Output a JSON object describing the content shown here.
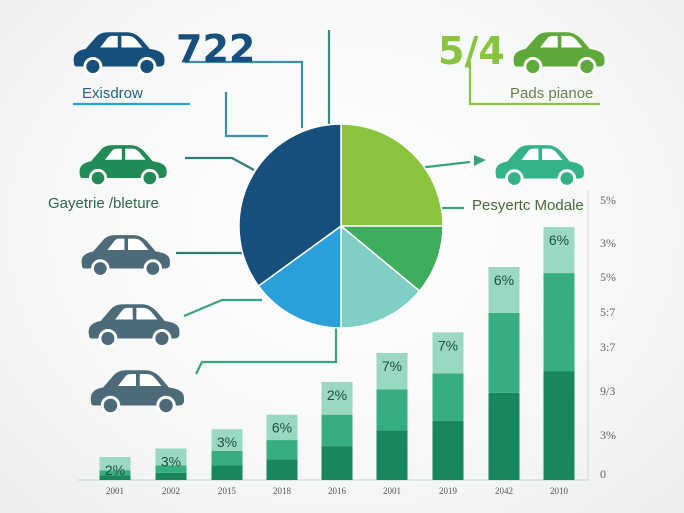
{
  "colors": {
    "navy": "#174f7c",
    "blue": "#2b9fd9",
    "teal_light": "#7fcfc4",
    "green_mid": "#3fae5c",
    "lime": "#8ac43f",
    "bar_dark": "#19875c",
    "bar_mid": "#36ae7f",
    "bar_light": "#9bd8c2",
    "slate": "#4d6a78",
    "car_green": "#228a55",
    "car_teal": "#34b38a",
    "car_lime": "#5fa83a"
  },
  "callouts": {
    "top_left_number": "722",
    "top_left_label": "Exisdrow",
    "top_right_number": "5/4",
    "top_right_label": "Pads pianoe",
    "mid_left_label": "Gayetrie /bleture",
    "mid_right_label": "Pesyertc Modale"
  },
  "icons": {
    "car_1": "car-icon",
    "car_2": "car-icon",
    "car_3": "car-icon",
    "car_4": "car-icon",
    "car_5": "car-icon",
    "car_6": "car-icon",
    "car_7": "car-icon"
  },
  "chart_data": [
    {
      "type": "pie",
      "slices": [
        {
          "value": 25,
          "color": "#8ac43f"
        },
        {
          "value": 11,
          "color": "#3fae5c"
        },
        {
          "value": 14,
          "color": "#7fcfc4"
        },
        {
          "value": 15,
          "color": "#2b9fd9"
        },
        {
          "value": 35,
          "color": "#174f7c"
        }
      ]
    },
    {
      "type": "bar",
      "stacked": true,
      "categories": [
        "2001",
        "2002",
        "2015",
        "2018",
        "2016",
        "2001",
        "2019",
        "2042",
        "2010"
      ],
      "bar_labels": [
        "2%",
        "3%",
        "3%",
        "6%",
        "2%",
        "7%",
        "7%",
        "6%",
        "6%"
      ],
      "series": [
        {
          "values": [
            0.4,
            0.6,
            1.2,
            1.7,
            2.8,
            4.1,
            4.9,
            7.2,
            9.0
          ]
        },
        {
          "values": [
            0.4,
            0.6,
            1.2,
            1.6,
            2.6,
            3.4,
            3.9,
            6.6,
            8.1
          ]
        },
        {
          "values": [
            1.1,
            1.4,
            1.8,
            2.1,
            2.7,
            3.0,
            3.4,
            3.8,
            3.8
          ]
        }
      ],
      "ylim": [
        0,
        20
      ],
      "right_axis_ticks": [
        "5%",
        "3%",
        "5%",
        "5:7",
        "3:7",
        "9/3",
        "3%",
        "0"
      ]
    }
  ]
}
